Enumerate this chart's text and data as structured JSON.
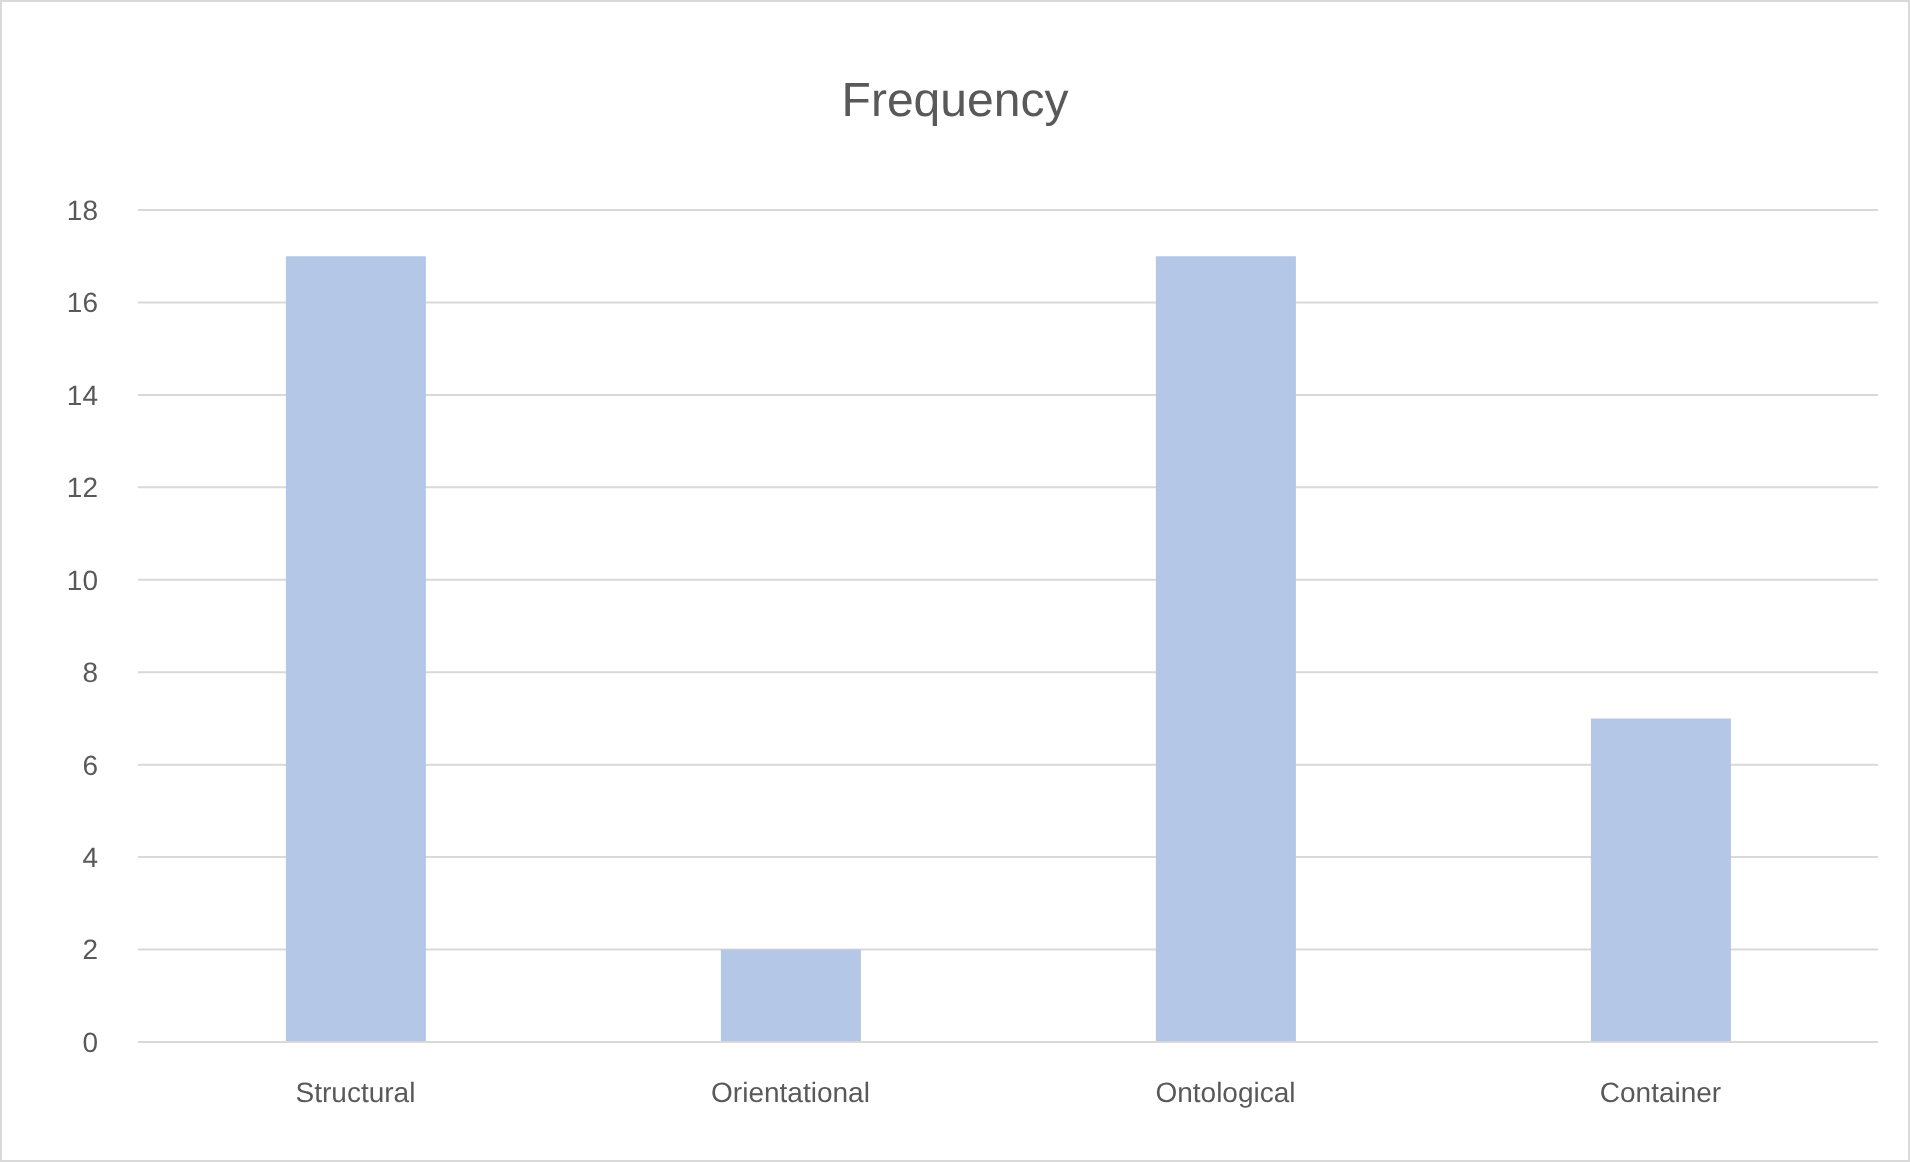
{
  "chart_data": {
    "type": "bar",
    "title": "Frequency",
    "categories": [
      "Structural",
      "Orientational",
      "Ontological",
      "Container"
    ],
    "values": [
      17,
      2,
      17,
      7
    ],
    "color": "#b4c7e7",
    "ylim": [
      0,
      18
    ],
    "yticks": [
      0,
      2,
      4,
      6,
      8,
      10,
      12,
      14,
      16,
      18
    ],
    "grid": "y"
  }
}
